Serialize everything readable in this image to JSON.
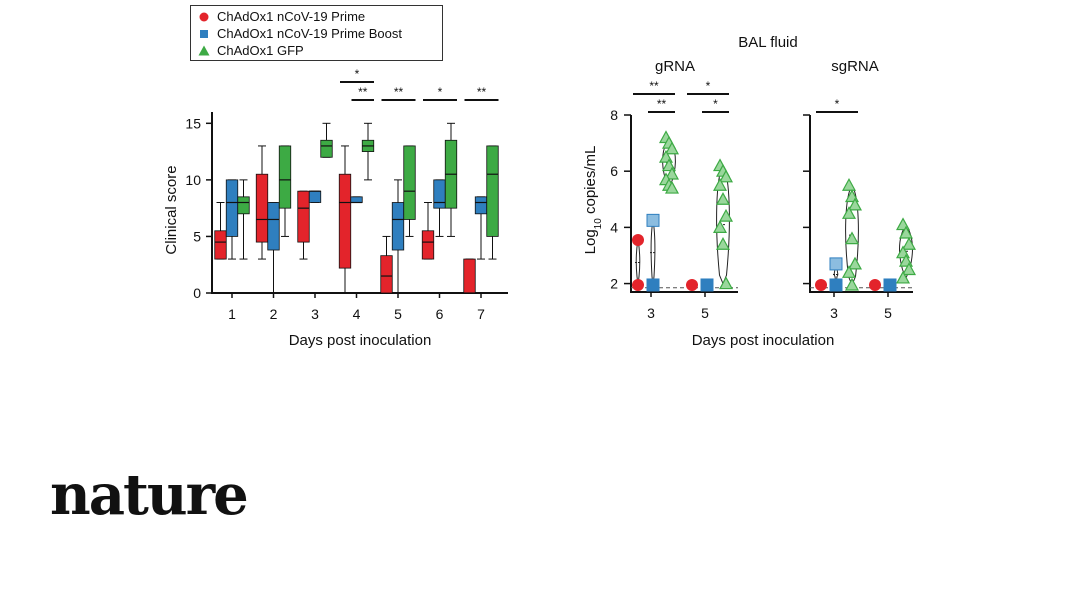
{
  "colors": {
    "prime": "#e3242b",
    "prime_boost": "#2f7fbf",
    "gfp": "#3daa44",
    "prime_light": "#f08a8e",
    "prime_boost_light": "#8cbde0",
    "gfp_light": "#9ad79c"
  },
  "legend": [
    {
      "key": "prime",
      "label": "ChAdOx1 nCoV-19 Prime",
      "marker": "circle"
    },
    {
      "key": "prime_boost",
      "label": "ChAdOx1 nCoV-19 Prime Boost",
      "marker": "square"
    },
    {
      "key": "gfp",
      "label": "ChAdOx1 GFP",
      "marker": "triangle"
    }
  ],
  "chart_data": [
    {
      "type": "box",
      "title": "",
      "xlabel": "Days post inoculation",
      "ylabel": "Clinical score",
      "ylim": [
        0,
        16
      ],
      "yticks": [
        0,
        5,
        10,
        15
      ],
      "categories": [
        "1",
        "2",
        "3",
        "4",
        "5",
        "6",
        "7"
      ],
      "series": [
        {
          "name": "ChAdOx1 nCoV-19 Prime",
          "key": "prime",
          "boxes": [
            {
              "min": 3,
              "q1": 3,
              "median": 4.5,
              "q3": 5.5,
              "max": 8
            },
            {
              "min": 3,
              "q1": 4.5,
              "median": 6.5,
              "q3": 10.5,
              "max": 13
            },
            {
              "min": 3,
              "q1": 4.5,
              "median": 7.5,
              "q3": 9,
              "max": 9
            },
            {
              "min": 0,
              "q1": 2.2,
              "median": 8,
              "q3": 10.5,
              "max": 13
            },
            {
              "min": 0,
              "q1": 0,
              "median": 1.5,
              "q3": 3.3,
              "max": 5
            },
            {
              "min": 3,
              "q1": 3,
              "median": 4.5,
              "q3": 5.5,
              "max": 8
            },
            {
              "min": 0,
              "q1": 0,
              "median": 0,
              "q3": 3,
              "max": 3
            }
          ]
        },
        {
          "name": "ChAdOx1 nCoV-19 Prime Boost",
          "key": "prime_boost",
          "boxes": [
            {
              "min": 3,
              "q1": 5,
              "median": 8,
              "q3": 10,
              "max": 10
            },
            {
              "min": 0,
              "q1": 3.8,
              "median": 6.5,
              "q3": 8,
              "max": 8
            },
            {
              "min": 8,
              "q1": 8,
              "median": 9,
              "q3": 9,
              "max": 9
            },
            {
              "min": 8,
              "q1": 8,
              "median": 8,
              "q3": 8.5,
              "max": 8.5
            },
            {
              "min": 0,
              "q1": 3.8,
              "median": 6.5,
              "q3": 8,
              "max": 10
            },
            {
              "min": 5,
              "q1": 7.5,
              "median": 8,
              "q3": 10,
              "max": 10
            },
            {
              "min": 3,
              "q1": 7,
              "median": 8,
              "q3": 8.5,
              "max": 8.5
            }
          ]
        },
        {
          "name": "ChAdOx1 GFP",
          "key": "gfp",
          "boxes": [
            {
              "min": 3,
              "q1": 7,
              "median": 8,
              "q3": 8.5,
              "max": 10
            },
            {
              "min": 5,
              "q1": 7.5,
              "median": 10,
              "q3": 13,
              "max": 13
            },
            {
              "min": 12,
              "q1": 12,
              "median": 13,
              "q3": 13.5,
              "max": 15
            },
            {
              "min": 10,
              "q1": 12.5,
              "median": 13,
              "q3": 13.5,
              "max": 15
            },
            {
              "min": 5,
              "q1": 6.5,
              "median": 9,
              "q3": 13,
              "max": 13
            },
            {
              "min": 5,
              "q1": 7.5,
              "median": 10.5,
              "q3": 13.5,
              "max": 15
            },
            {
              "min": 3,
              "q1": 5,
              "median": 10.5,
              "q3": 13,
              "max": 13
            }
          ]
        }
      ],
      "significance": [
        {
          "day": "4",
          "label": "*",
          "from": "prime",
          "to": "gfp",
          "level": 2
        },
        {
          "day": "4",
          "label": "**",
          "from": "prime_boost",
          "to": "gfp",
          "level": 1
        },
        {
          "day": "5",
          "label": "**",
          "from": "prime",
          "to": "gfp",
          "level": 1
        },
        {
          "day": "6",
          "label": "*",
          "from": "prime",
          "to": "gfp",
          "level": 1
        },
        {
          "day": "7",
          "label": "**",
          "from": "prime",
          "to": "gfp",
          "level": 1
        }
      ]
    },
    {
      "type": "violin",
      "title": "gRNA",
      "group_title": "BAL fluid",
      "xlabel": "Days post inoculation",
      "ylabel": "Log10 copies/mL",
      "ylim": [
        1.7,
        8
      ],
      "yticks": [
        2,
        4,
        6,
        8
      ],
      "detection_limit": 1.85,
      "categories": [
        "3",
        "5"
      ],
      "groups": [
        {
          "day": "3",
          "key": "prime",
          "points": [
            3.55,
            1.95
          ]
        },
        {
          "day": "3",
          "key": "prime_boost",
          "points": [
            4.25,
            1.95
          ]
        },
        {
          "day": "3",
          "key": "gfp",
          "points": [
            7.2,
            7.0,
            6.8,
            6.5,
            6.2,
            5.9,
            5.7,
            5.5,
            5.4
          ]
        },
        {
          "day": "5",
          "key": "prime",
          "points": [
            1.95
          ]
        },
        {
          "day": "5",
          "key": "prime_boost",
          "points": [
            1.95
          ]
        },
        {
          "day": "5",
          "key": "gfp",
          "points": [
            6.2,
            6.0,
            5.8,
            5.5,
            5.0,
            4.4,
            4.0,
            3.4,
            2.0
          ]
        }
      ],
      "significance": [
        {
          "day": "3",
          "label": "**",
          "from": "prime",
          "to": "gfp",
          "level": 2
        },
        {
          "day": "3",
          "label": "**",
          "from": "prime_boost",
          "to": "gfp",
          "level": 1
        },
        {
          "day": "5",
          "label": "*",
          "from": "prime",
          "to": "gfp",
          "level": 2
        },
        {
          "day": "5",
          "label": "*",
          "from": "prime_boost",
          "to": "gfp",
          "level": 1
        }
      ]
    },
    {
      "type": "violin",
      "title": "sgRNA",
      "group_title": "BAL fluid",
      "xlabel": "Days post inoculation",
      "ylabel": "Log10 copies/mL",
      "ylim": [
        1.7,
        8
      ],
      "yticks": [
        2,
        4,
        6,
        8
      ],
      "detection_limit": 1.85,
      "categories": [
        "3",
        "5"
      ],
      "groups": [
        {
          "day": "3",
          "key": "prime",
          "points": [
            1.95
          ]
        },
        {
          "day": "3",
          "key": "prime_boost",
          "points": [
            2.7,
            1.95
          ]
        },
        {
          "day": "3",
          "key": "gfp",
          "points": [
            5.5,
            5.1,
            4.8,
            4.5,
            3.6,
            2.7,
            2.4,
            1.95
          ]
        },
        {
          "day": "5",
          "key": "prime",
          "points": [
            1.95
          ]
        },
        {
          "day": "5",
          "key": "prime_boost",
          "points": [
            1.95
          ]
        },
        {
          "day": "5",
          "key": "gfp",
          "points": [
            4.1,
            3.8,
            3.4,
            3.1,
            2.8,
            2.5,
            2.2
          ]
        }
      ],
      "significance": [
        {
          "day": "3",
          "label": "*",
          "from": "prime",
          "to": "gfp",
          "level": 1
        }
      ]
    }
  ],
  "labels": {
    "bal_title": "BAL fluid",
    "logo": "nature"
  }
}
